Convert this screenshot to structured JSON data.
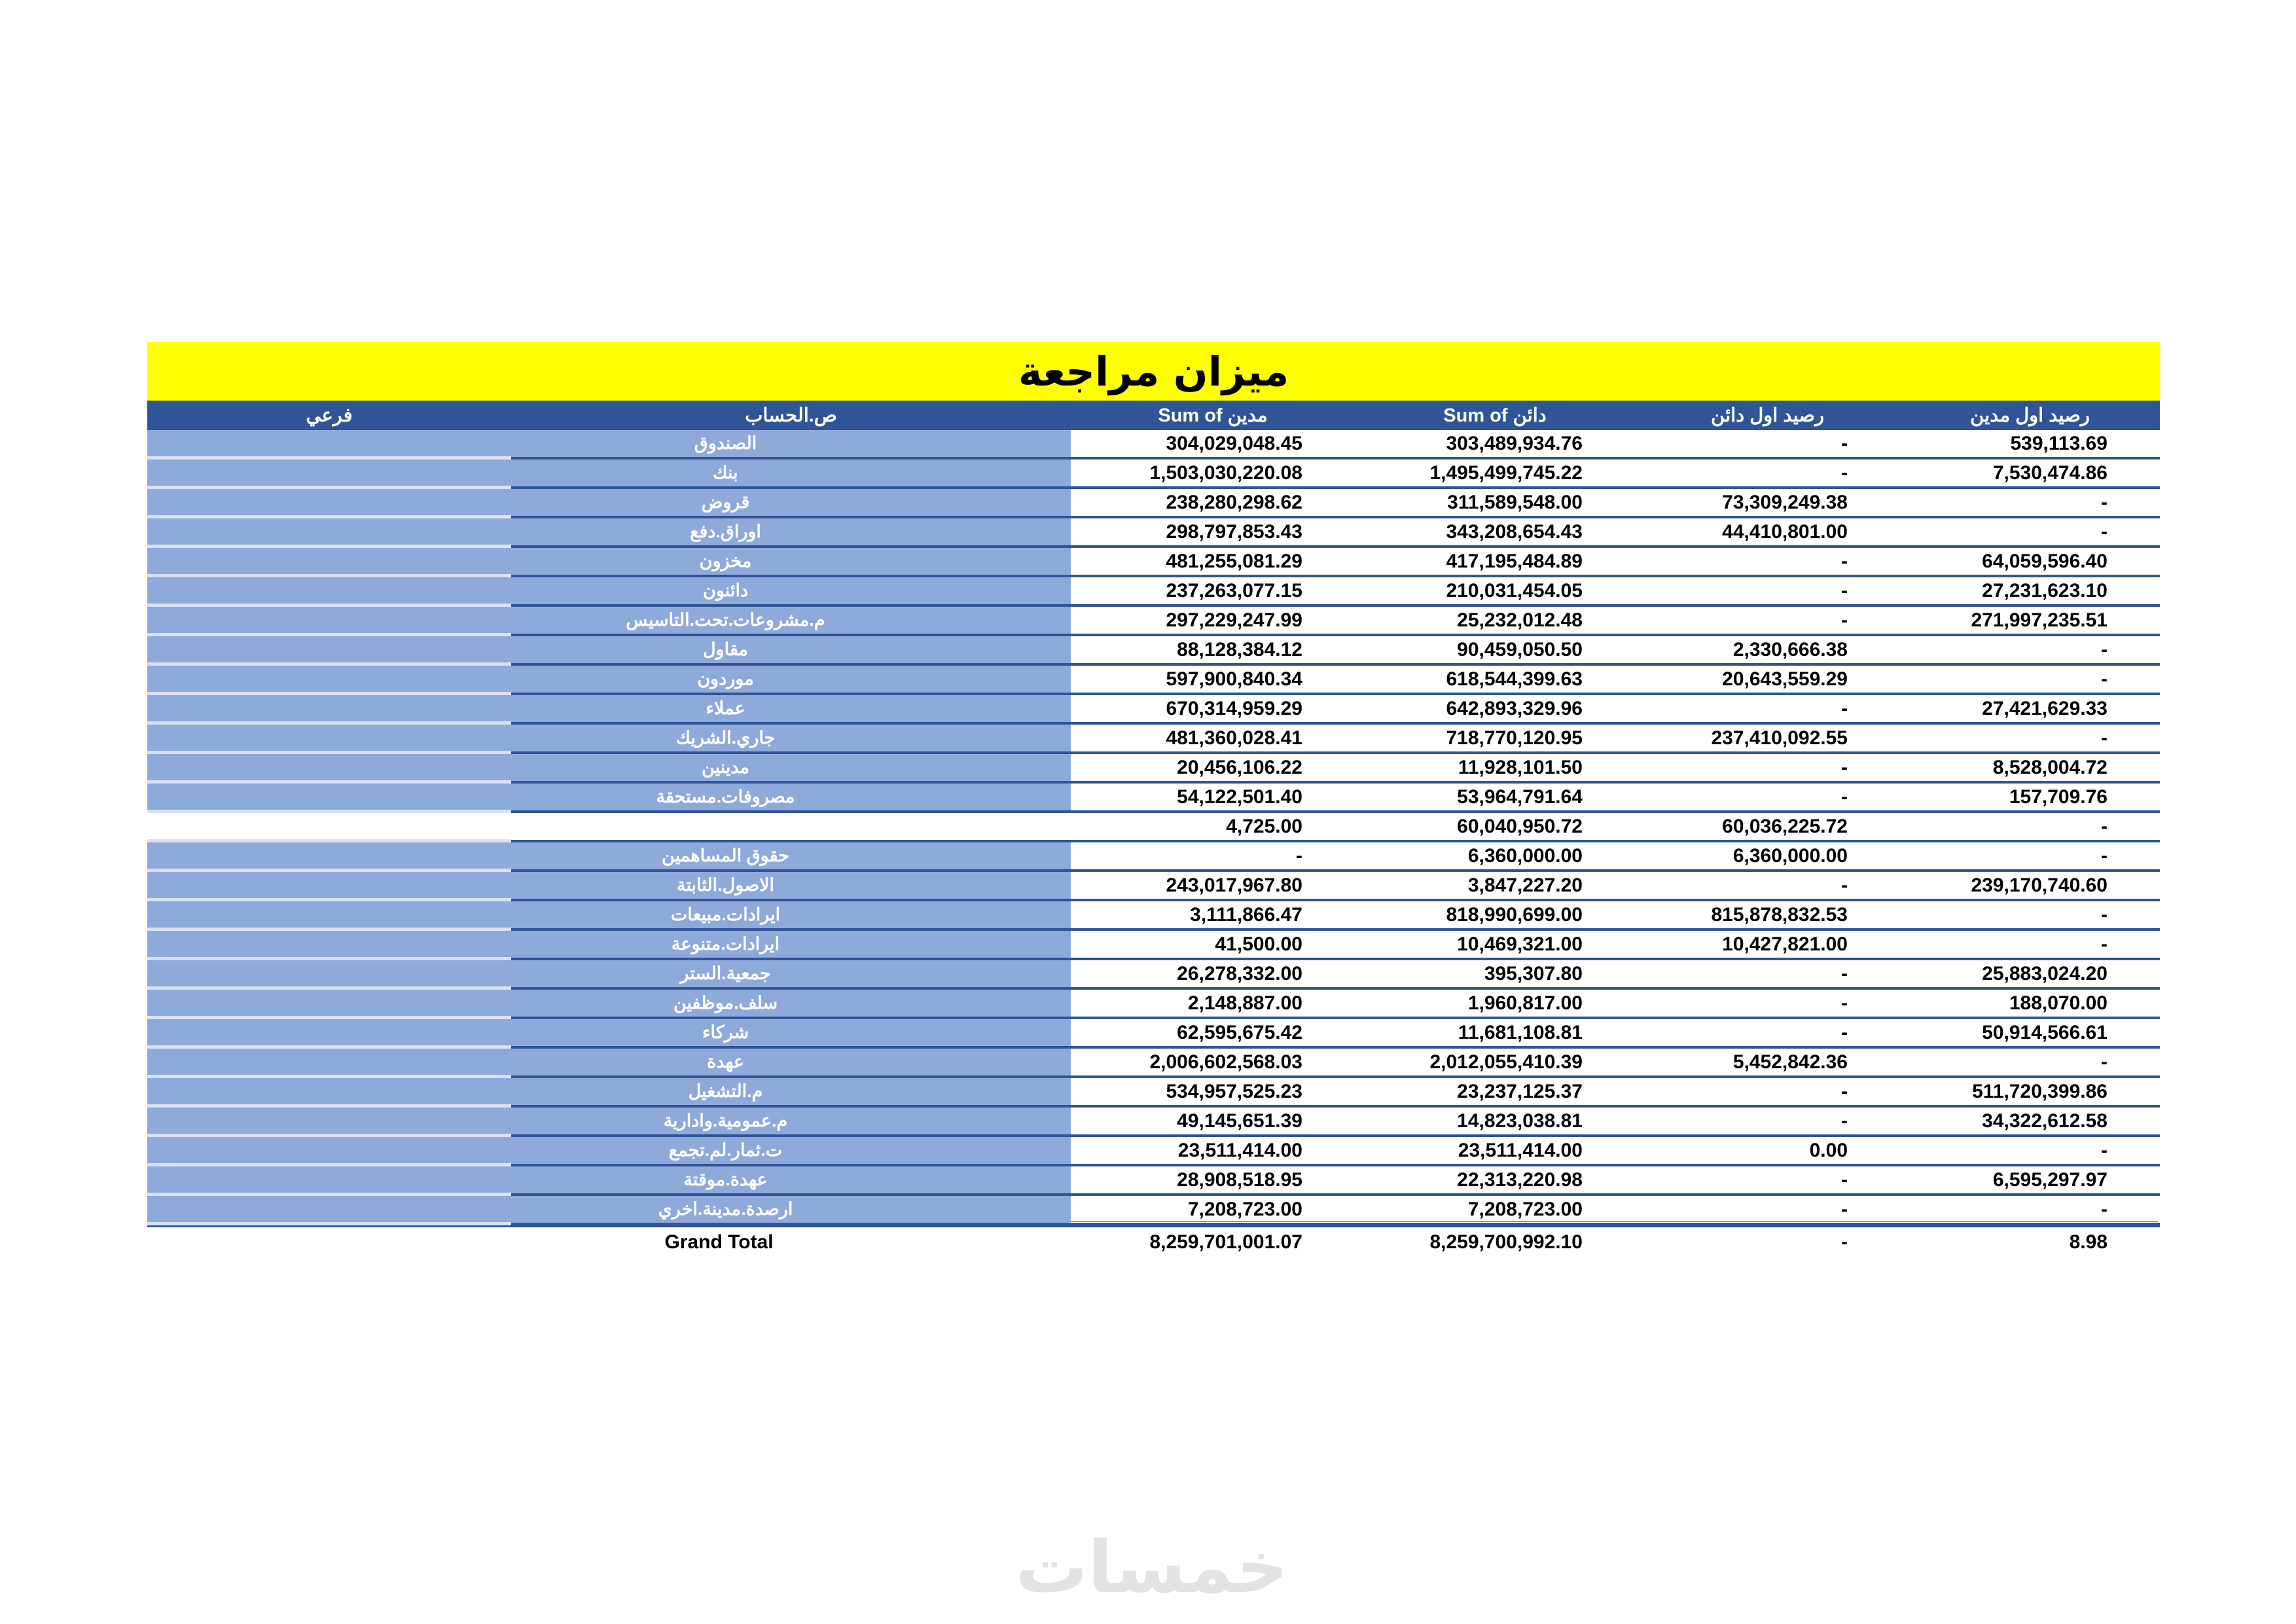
{
  "title": "ميزان مراجعة",
  "headers": [
    "فرعي",
    "ص.الحساب",
    "Sum of مدين",
    "Sum of دائن",
    "رصيد اول دائن",
    "رصيد اول مدين"
  ],
  "rows": [
    [
      "",
      "الصندوق",
      "304,029,048.45",
      "303,489,934.76",
      "-",
      "539,113.69"
    ],
    [
      "",
      "بنك",
      "1,503,030,220.08",
      "1,495,499,745.22",
      "-",
      "7,530,474.86"
    ],
    [
      "",
      "قروض",
      "238,280,298.62",
      "311,589,548.00",
      "73,309,249.38",
      "-"
    ],
    [
      "",
      "اوراق.دفع",
      "298,797,853.43",
      "343,208,654.43",
      "44,410,801.00",
      "-"
    ],
    [
      "",
      "مخزون",
      "481,255,081.29",
      "417,195,484.89",
      "-",
      "64,059,596.40"
    ],
    [
      "",
      "دائنون",
      "237,263,077.15",
      "210,031,454.05",
      "-",
      "27,231,623.10"
    ],
    [
      "",
      "م.مشروعات.تحت.التاسيس",
      "297,229,247.99",
      "25,232,012.48",
      "-",
      "271,997,235.51"
    ],
    [
      "",
      "مقاول",
      "88,128,384.12",
      "90,459,050.50",
      "2,330,666.38",
      "-"
    ],
    [
      "",
      "موردون",
      "597,900,840.34",
      "618,544,399.63",
      "20,643,559.29",
      "-"
    ],
    [
      "",
      "عملاء",
      "670,314,959.29",
      "642,893,329.96",
      "-",
      "27,421,629.33"
    ],
    [
      "",
      "جاري.الشريك",
      "481,360,028.41",
      "718,770,120.95",
      "237,410,092.55",
      "-"
    ],
    [
      "",
      "مدينين",
      "20,456,106.22",
      "11,928,101.50",
      "-",
      "8,528,004.72"
    ],
    [
      "",
      "مصروفات.مستحقة",
      "54,122,501.40",
      "53,964,791.64",
      "-",
      "157,709.76"
    ],
    [
      "",
      "",
      "4,725.00",
      "60,040,950.72",
      "60,036,225.72",
      "-"
    ],
    [
      "",
      "حقوق المساهمين",
      "-",
      "6,360,000.00",
      "6,360,000.00",
      "-"
    ],
    [
      "",
      "الاصول.الثابتة",
      "243,017,967.80",
      "3,847,227.20",
      "-",
      "239,170,740.60"
    ],
    [
      "",
      "ايرادات.مبيعات",
      "3,111,866.47",
      "818,990,699.00",
      "815,878,832.53",
      "-"
    ],
    [
      "",
      "ايرادات.متنوعة",
      "41,500.00",
      "10,469,321.00",
      "10,427,821.00",
      "-"
    ],
    [
      "",
      "جمعية.الستر",
      "26,278,332.00",
      "395,307.80",
      "-",
      "25,883,024.20"
    ],
    [
      "",
      "سلف.موظفين",
      "2,148,887.00",
      "1,960,817.00",
      "-",
      "188,070.00"
    ],
    [
      "",
      "شركاء",
      "62,595,675.42",
      "11,681,108.81",
      "-",
      "50,914,566.61"
    ],
    [
      "",
      "عهدة",
      "2,006,602,568.03",
      "2,012,055,410.39",
      "5,452,842.36",
      "-"
    ],
    [
      "",
      "م.التشغيل",
      "534,957,525.23",
      "23,237,125.37",
      "-",
      "511,720,399.86"
    ],
    [
      "",
      "م.عمومية.وادارية",
      "49,145,651.39",
      "14,823,038.81",
      "-",
      "34,322,612.58"
    ],
    [
      "",
      "ت.ثمار.لم.تجمع",
      "23,511,414.00",
      "23,511,414.00",
      "0.00",
      "-"
    ],
    [
      "",
      "عهدة.موقتة",
      "28,908,518.95",
      "22,313,220.98",
      "-",
      "6,595,297.97"
    ],
    [
      "",
      "ارصدة.مدينة.اخري",
      "7,208,723.00",
      "7,208,723.00",
      "-",
      "-"
    ]
  ],
  "grand_total": [
    "",
    "Grand Total",
    "8,259,701,001.07",
    "8,259,700,992.10",
    "-",
    "8.98"
  ],
  "watermark": "خمسات",
  "colors": {
    "title_bg": "#ffff00",
    "header_bg": "#2f5597",
    "label_bg": "#8eaadb",
    "row_border": "#2f5597"
  }
}
